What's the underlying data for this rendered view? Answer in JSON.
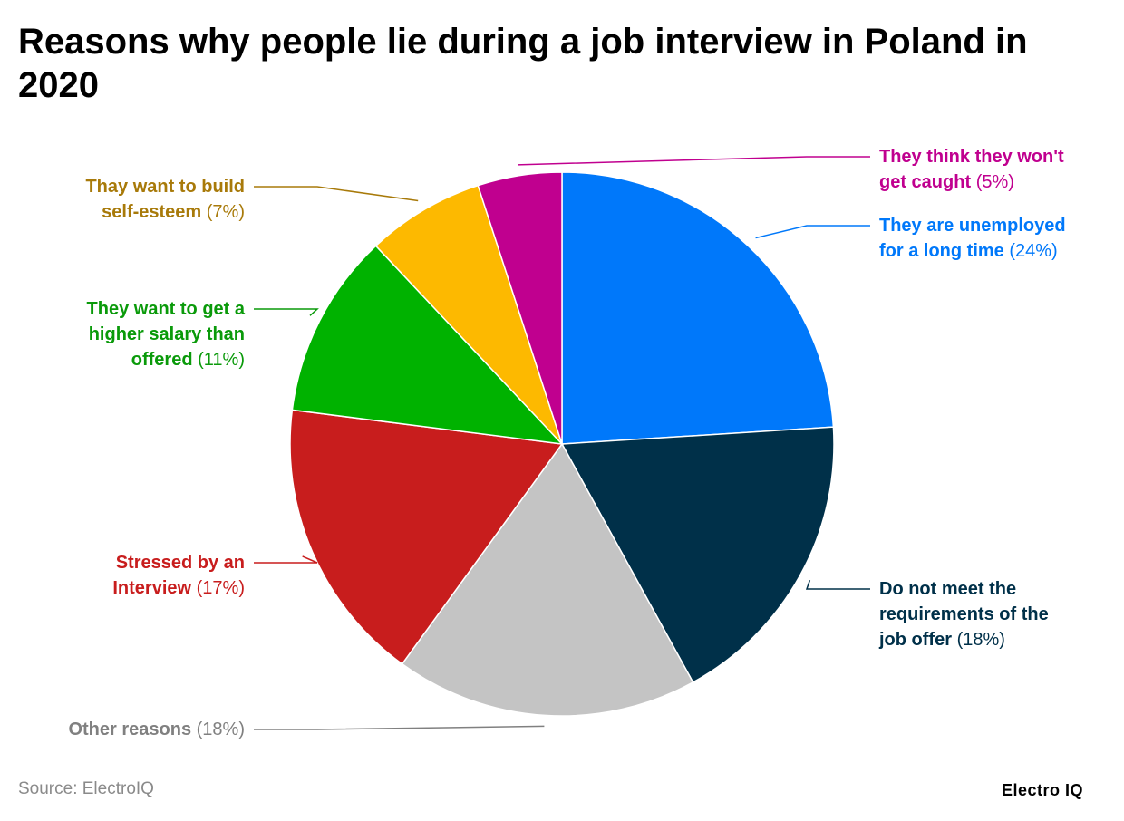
{
  "title": "Reasons why people lie during a job interview in Poland in 2020",
  "source": "Source: ElectroIQ",
  "brand": "Electro IQ",
  "chart_data": {
    "type": "pie",
    "title": "Reasons why people lie during a job interview in Poland in 2020",
    "unit": "%",
    "slices": [
      {
        "label_line1": "They are unemployed",
        "label_line2": "for a long time",
        "value": 24,
        "pct_text": "(24%)",
        "color": "#0078FA"
      },
      {
        "label_line1": "Do not meet the",
        "label_line2": "requirements of the",
        "label_line3": "job offer",
        "value": 18,
        "pct_text": "(18%)",
        "color": "#003049"
      },
      {
        "label_line1": "Other reasons",
        "value": 18,
        "pct_text": "(18%)",
        "color": "#C4C4C4",
        "text_color": "#808080"
      },
      {
        "label_line1": "Stressed by an",
        "label_line2": "Interview",
        "value": 17,
        "pct_text": "(17%)",
        "color": "#C81D1D"
      },
      {
        "label_line1": "They want to get a",
        "label_line2": "higher salary than",
        "label_line3": "offered",
        "value": 11,
        "pct_text": "(11%)",
        "color": "#00B200",
        "text_color": "#0A9A0A"
      },
      {
        "label_line1": "Thay want to build",
        "label_line2": "self-esteem",
        "value": 7,
        "pct_text": "(7%)",
        "color": "#FDB900",
        "text_color": "#A87A0A"
      },
      {
        "label_line1": "They think they won't",
        "label_line2": "get caught",
        "value": 5,
        "pct_text": "(5%)",
        "color": "#C0008F"
      }
    ]
  }
}
